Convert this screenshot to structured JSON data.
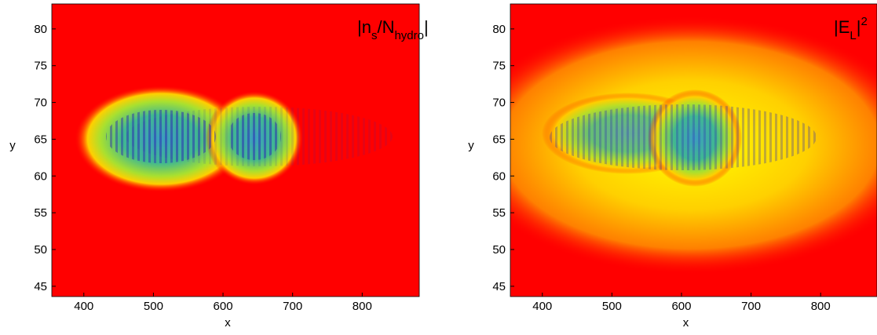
{
  "chart_data": [
    {
      "type": "heatmap",
      "label": [
        "|n",
        "s",
        "/N",
        "hydro",
        "|"
      ],
      "xlabel": "x",
      "ylabel": "y",
      "xlim": [
        354,
        882
      ],
      "ylim": [
        43.6,
        83.4
      ],
      "xticks": [
        400,
        500,
        600,
        700,
        800
      ],
      "yticks": [
        45,
        50,
        55,
        60,
        65,
        70,
        75,
        80
      ]
    },
    {
      "type": "heatmap",
      "label": [
        "|E",
        "L",
        "|",
        "2"
      ],
      "xlabel": "x",
      "ylabel": "y",
      "xlim": [
        354,
        881
      ],
      "ylim": [
        43.6,
        83.4
      ],
      "xticks": [
        400,
        500,
        600,
        700,
        800
      ],
      "yticks": [
        45,
        50,
        55,
        60,
        65,
        70,
        75,
        80
      ]
    }
  ]
}
